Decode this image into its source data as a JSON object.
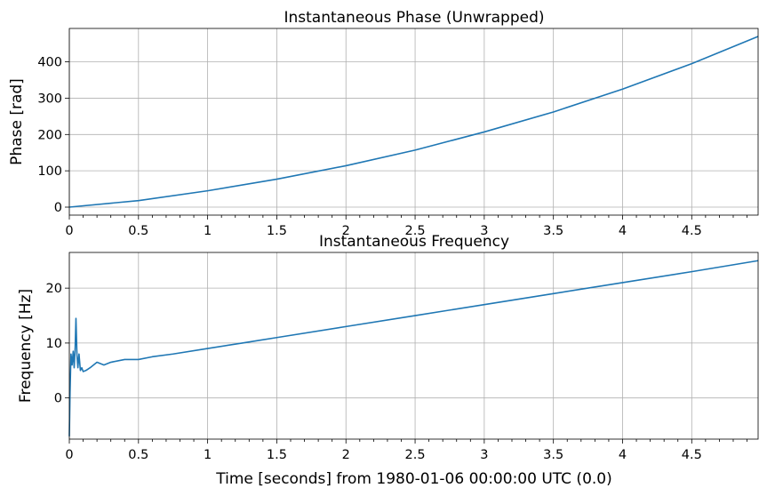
{
  "chart_data": [
    {
      "type": "line",
      "title": "Instantaneous Phase (Unwrapped)",
      "xlabel": "",
      "ylabel": "Phase [rad]",
      "xlim": [
        0,
        4.98
      ],
      "ylim": [
        -22,
        492
      ],
      "xticks": [
        0,
        0.5,
        1,
        1.5,
        2,
        2.5,
        3,
        3.5,
        4,
        4.5
      ],
      "yticks": [
        0,
        100,
        200,
        300,
        400
      ],
      "grid": true,
      "series": [
        {
          "color": "#1f77b4",
          "x": [
            0,
            0.5,
            1,
            1.5,
            2,
            2.5,
            3,
            3.5,
            4,
            4.5,
            4.98
          ],
          "y": [
            0,
            18,
            45,
            77,
            114,
            157,
            207,
            262,
            325,
            395,
            470
          ]
        }
      ]
    },
    {
      "type": "line",
      "title": "Instantaneous Frequency",
      "xlabel": "Time [seconds] from 1980-01-06 00:00:00 UTC (0.0)",
      "ylabel": "Frequency [Hz]",
      "xlim": [
        0,
        4.98
      ],
      "ylim": [
        -7.5,
        26.5
      ],
      "xticks": [
        0,
        0.5,
        1,
        1.5,
        2,
        2.5,
        3,
        3.5,
        4,
        4.5
      ],
      "yticks": [
        0,
        10,
        20
      ],
      "grid": true,
      "series": [
        {
          "color": "#1f77b4",
          "x": [
            0,
            0.005,
            0.012,
            0.02,
            0.028,
            0.035,
            0.042,
            0.048,
            0.055,
            0.062,
            0.07,
            0.08,
            0.09,
            0.1,
            0.12,
            0.15,
            0.2,
            0.25,
            0.3,
            0.4,
            0.5,
            0.6,
            0.75,
            1,
            1.25,
            1.5,
            2,
            2.5,
            3,
            3.5,
            4,
            4.5,
            4.98
          ],
          "y": [
            -7,
            1,
            8,
            6,
            8.5,
            5.5,
            9,
            14.5,
            8,
            5.5,
            8,
            5,
            5.5,
            4.8,
            5,
            5.5,
            6.5,
            6,
            6.5,
            7,
            7,
            7.5,
            8,
            9,
            10,
            11,
            13,
            15,
            17,
            19,
            21,
            23,
            25
          ]
        }
      ]
    }
  ]
}
